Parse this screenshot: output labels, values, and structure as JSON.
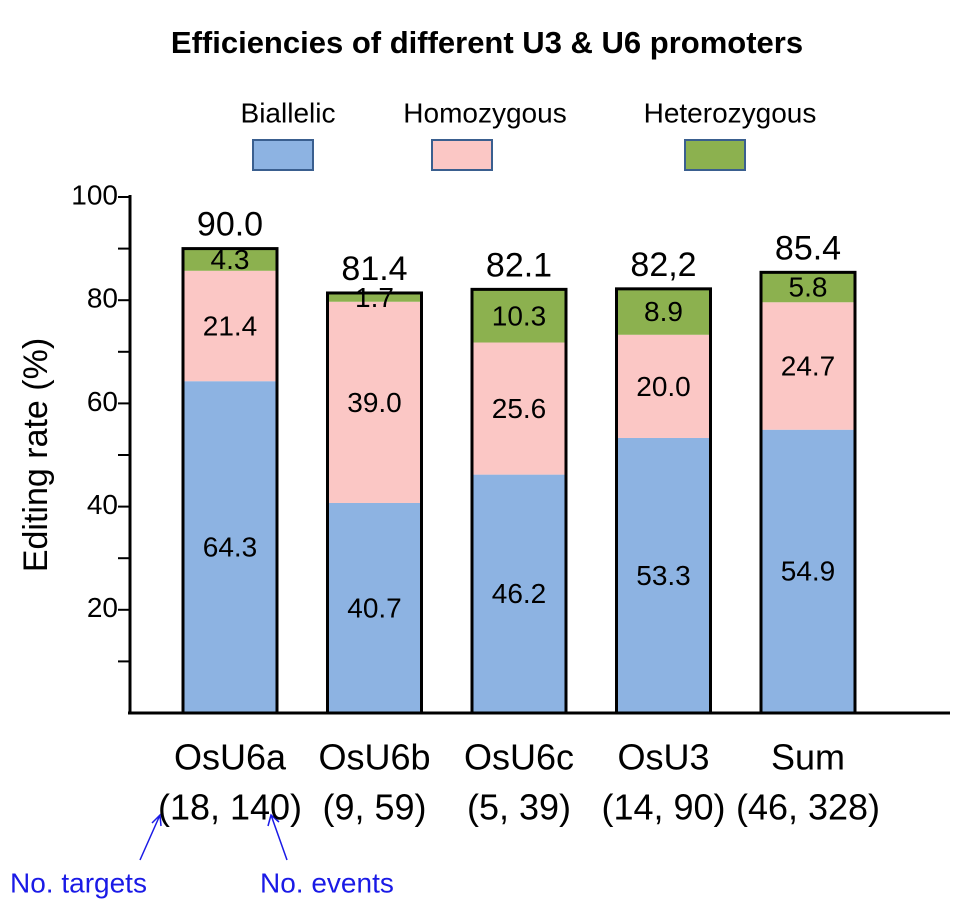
{
  "chart_data": {
    "type": "stacked_bar",
    "title": "Efficiencies of different U3 & U6 promoters",
    "ylabel": "Editing rate (%)",
    "categories": [
      "OsU6a",
      "OsU6b",
      "OsU6c",
      "OsU3",
      "Sum"
    ],
    "category_counts": [
      "(18, 140)",
      "(9, 59)",
      "(5, 39)",
      "(14, 90)",
      "(46, 328)"
    ],
    "series": [
      {
        "name": "Biallelic",
        "color": "#8db3e2",
        "values": [
          64.3,
          40.7,
          46.2,
          53.3,
          54.9
        ],
        "value_labels": [
          "64.3",
          "40.7",
          "46.2",
          "53.3",
          "54.9"
        ]
      },
      {
        "name": "Homozygous",
        "color": "#fbc7c5",
        "values": [
          21.4,
          39.0,
          25.6,
          20.0,
          24.7
        ],
        "value_labels": [
          "21.4",
          "39.0",
          "25.6",
          "20.0",
          "24.7"
        ]
      },
      {
        "name": "Heterozygous",
        "color": "#8cb14f",
        "values": [
          4.3,
          1.7,
          10.3,
          8.9,
          5.8
        ],
        "value_labels": [
          "4.3",
          "1.7",
          "10.3",
          "8.9",
          "5.8"
        ]
      }
    ],
    "totals": [
      90.0,
      81.4,
      82.1,
      82.2,
      85.4
    ],
    "total_labels": [
      "90.0",
      "81.4",
      "82.1",
      "82,2",
      "85.4"
    ],
    "ylim": [
      0,
      100
    ],
    "yticks": [
      20,
      40,
      60,
      80,
      100
    ],
    "yminor_ticks": [
      10,
      30,
      50,
      70,
      90
    ],
    "annotations": [
      "No. targets",
      "No. events"
    ]
  }
}
